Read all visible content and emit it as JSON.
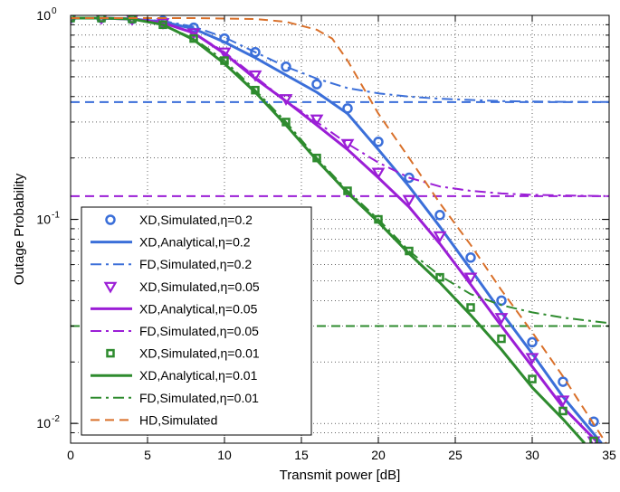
{
  "chart_data": {
    "type": "line",
    "xlabel": "Transmit power [dB]",
    "ylabel": "Outage Probability",
    "xlim": [
      0,
      35
    ],
    "ylim": [
      0.008,
      1
    ],
    "yscale": "log",
    "grid": true,
    "legend_position": "bottom-left",
    "x_ticks": [
      0,
      5,
      10,
      15,
      20,
      25,
      30,
      35
    ],
    "x_tick_labels": [
      "0",
      "5",
      "10",
      "15",
      "20",
      "25",
      "30",
      "35"
    ],
    "y_ticks": [
      0.01,
      0.1,
      1
    ],
    "y_tick_bases": [
      "10",
      "10",
      "10"
    ],
    "y_tick_exps": [
      "-2",
      "-1",
      "0"
    ],
    "series": [
      {
        "name": "XD,Simulated,η=0.2",
        "color": "#3b6fd9",
        "style": "marker",
        "marker": "circle",
        "x": [
          0,
          2,
          4,
          6,
          8,
          10,
          12,
          14,
          16,
          18,
          20,
          22,
          24,
          26,
          28,
          30,
          32,
          34
        ],
        "y": [
          0.97,
          0.97,
          0.96,
          0.94,
          0.87,
          0.77,
          0.66,
          0.56,
          0.46,
          0.35,
          0.24,
          0.16,
          0.105,
          0.065,
          0.04,
          0.025,
          0.016,
          0.0102
        ]
      },
      {
        "name": "XD,Analytical,η=0.2",
        "color": "#3b6fd9",
        "style": "solid",
        "x": [
          0,
          2,
          4,
          6,
          8,
          10,
          12,
          14,
          16,
          18,
          20,
          22,
          24,
          26,
          28,
          30,
          32,
          34.5
        ],
        "y": [
          0.97,
          0.97,
          0.96,
          0.93,
          0.86,
          0.74,
          0.62,
          0.51,
          0.42,
          0.33,
          0.22,
          0.145,
          0.092,
          0.057,
          0.035,
          0.022,
          0.0135,
          0.008
        ]
      },
      {
        "name": "FD,Simulated,η=0.2",
        "color": "#3b6fd9",
        "style": "dashdot",
        "x": [
          0,
          2,
          4,
          6,
          8,
          10,
          12,
          14,
          16,
          18,
          20,
          22,
          24,
          26,
          28,
          30,
          32,
          35
        ],
        "y": [
          0.97,
          0.97,
          0.96,
          0.94,
          0.88,
          0.78,
          0.66,
          0.56,
          0.49,
          0.44,
          0.415,
          0.4,
          0.39,
          0.385,
          0.38,
          0.378,
          0.377,
          0.376
        ]
      },
      {
        "name": "XD,Simulated,η=0.05",
        "color": "#9b1ed6",
        "style": "marker",
        "marker": "triangle-down",
        "x": [
          0,
          2,
          4,
          6,
          8,
          10,
          12,
          14,
          16,
          18,
          20,
          22,
          24,
          26,
          28,
          30,
          32,
          34
        ],
        "y": [
          0.97,
          0.97,
          0.96,
          0.92,
          0.82,
          0.66,
          0.51,
          0.39,
          0.31,
          0.235,
          0.17,
          0.125,
          0.083,
          0.052,
          0.033,
          0.021,
          0.013,
          0.0082
        ]
      },
      {
        "name": "XD,Analytical,η=0.05",
        "color": "#9b1ed6",
        "style": "solid",
        "x": [
          0,
          2,
          4,
          6,
          8,
          10,
          12,
          14,
          16,
          18,
          20,
          22,
          24,
          26,
          28,
          30,
          32,
          34.3
        ],
        "y": [
          0.97,
          0.97,
          0.96,
          0.92,
          0.82,
          0.65,
          0.49,
          0.38,
          0.29,
          0.22,
          0.16,
          0.115,
          0.076,
          0.048,
          0.03,
          0.019,
          0.012,
          0.008
        ]
      },
      {
        "name": "FD,Simulated,η=0.05",
        "color": "#9b1ed6",
        "style": "dashdot",
        "x": [
          0,
          2,
          4,
          6,
          8,
          10,
          12,
          14,
          16,
          18,
          20,
          22,
          24,
          26,
          28,
          30,
          32,
          35
        ],
        "y": [
          0.97,
          0.97,
          0.96,
          0.92,
          0.82,
          0.66,
          0.5,
          0.38,
          0.3,
          0.235,
          0.19,
          0.16,
          0.145,
          0.138,
          0.134,
          0.132,
          0.131,
          0.13
        ]
      },
      {
        "name": "XD,Simulated,η=0.01",
        "color": "#2e8b2e",
        "style": "marker",
        "marker": "square",
        "x": [
          0,
          2,
          4,
          6,
          8,
          10,
          12,
          14,
          16,
          18,
          20,
          22,
          24,
          26,
          28,
          30,
          32,
          34
        ],
        "y": [
          0.97,
          0.97,
          0.96,
          0.9,
          0.77,
          0.6,
          0.43,
          0.3,
          0.2,
          0.138,
          0.1,
          0.07,
          0.052,
          0.037,
          0.026,
          0.0165,
          0.0115,
          0.0082
        ]
      },
      {
        "name": "XD,Analytical,η=0.01",
        "color": "#2e8b2e",
        "style": "solid",
        "x": [
          0,
          2,
          4,
          6,
          8,
          10,
          12,
          14,
          16,
          18,
          20,
          22,
          24,
          26,
          28,
          30,
          32,
          33.4
        ],
        "y": [
          0.97,
          0.97,
          0.96,
          0.9,
          0.76,
          0.58,
          0.42,
          0.29,
          0.195,
          0.135,
          0.097,
          0.068,
          0.049,
          0.034,
          0.023,
          0.015,
          0.0105,
          0.008
        ]
      },
      {
        "name": "FD,Simulated,η=0.01",
        "color": "#2e8b2e",
        "style": "dashdot",
        "x": [
          0,
          2,
          4,
          6,
          8,
          10,
          12,
          14,
          16,
          18,
          20,
          22,
          24,
          26,
          28,
          30,
          32,
          35
        ],
        "y": [
          0.97,
          0.97,
          0.96,
          0.9,
          0.77,
          0.6,
          0.43,
          0.3,
          0.2,
          0.138,
          0.1,
          0.07,
          0.053,
          0.043,
          0.038,
          0.035,
          0.033,
          0.031
        ]
      },
      {
        "name": "HD,Simulated",
        "color": "#d9702a",
        "style": "dashed",
        "x": [
          0,
          4,
          8,
          12,
          14,
          16,
          17,
          18,
          20,
          22,
          24,
          26,
          28,
          30,
          32,
          34.8
        ],
        "y": [
          0.97,
          0.97,
          0.97,
          0.96,
          0.93,
          0.85,
          0.77,
          0.6,
          0.33,
          0.2,
          0.12,
          0.075,
          0.045,
          0.028,
          0.017,
          0.008
        ]
      }
    ],
    "reference_lines": [
      {
        "y": 0.376,
        "color": "#3b6fd9",
        "style": "dashed"
      },
      {
        "y": 0.13,
        "color": "#9b1ed6",
        "style": "dashed"
      },
      {
        "y": 0.03,
        "color": "#2e8b2e",
        "style": "dashed"
      }
    ]
  }
}
